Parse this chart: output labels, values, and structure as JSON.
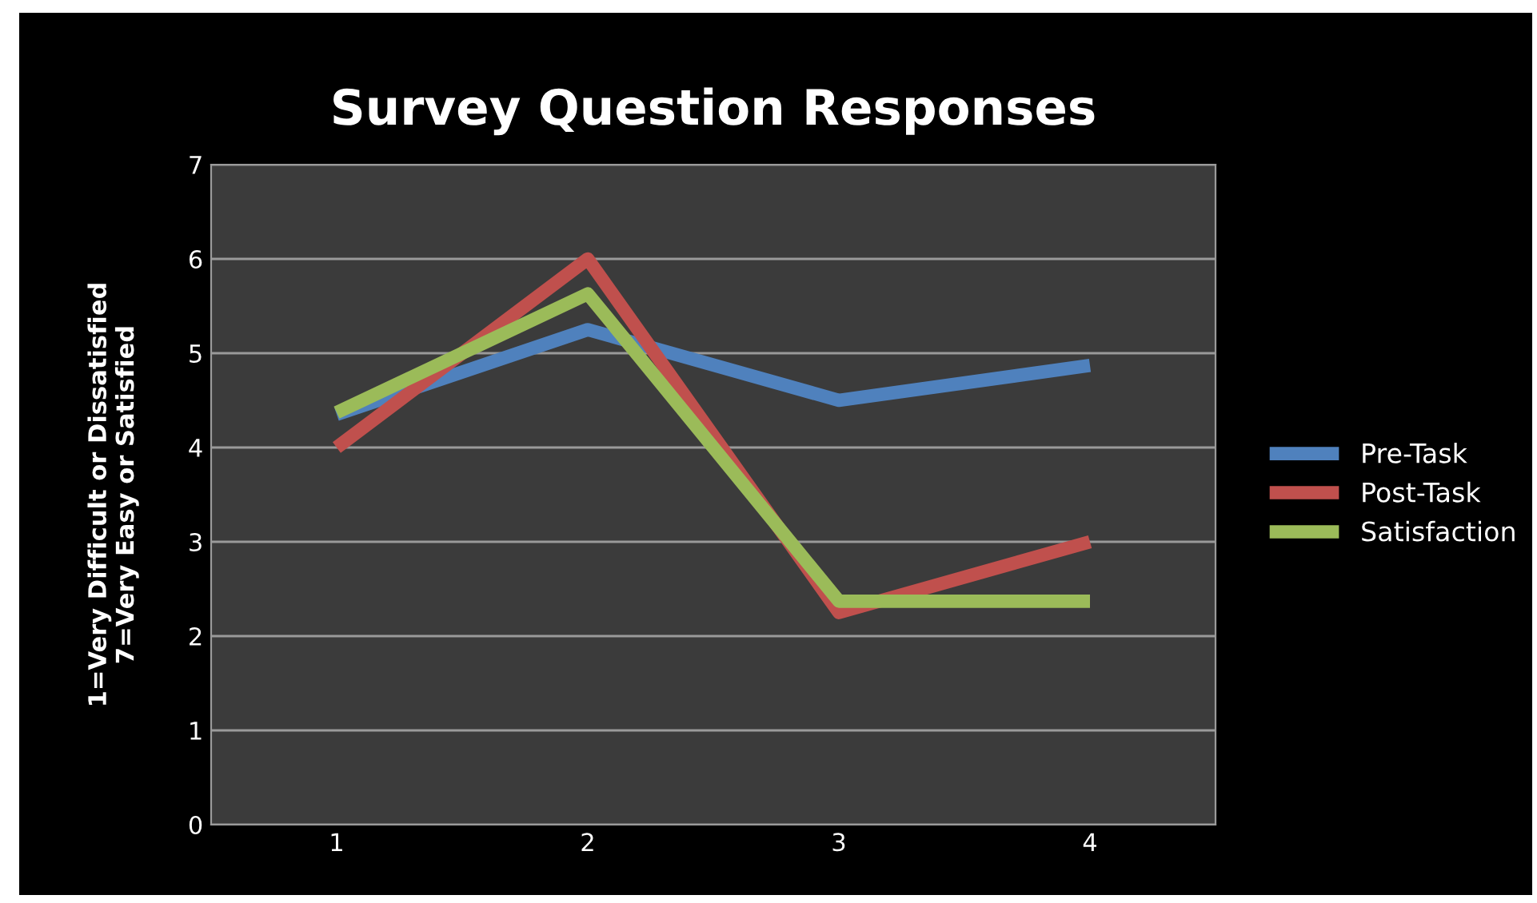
{
  "chart_data": {
    "type": "line",
    "title": "Survey Question Responses",
    "ylabel": "1=Very Difficult or Dissatisfied\n7=Very Easy or Satisfied",
    "categories": [
      "1",
      "2",
      "3",
      "4"
    ],
    "series": [
      {
        "name": "Pre-Task",
        "color": "#4f81bd",
        "values": [
          4.35,
          5.25,
          4.5,
          4.87
        ]
      },
      {
        "name": "Post-Task",
        "color": "#c0504d",
        "values": [
          4.0,
          6.0,
          2.25,
          3.0
        ]
      },
      {
        "name": "Satisfaction",
        "color": "#9bbb59",
        "values": [
          4.37,
          5.63,
          2.37,
          2.37
        ]
      }
    ],
    "ylim": [
      0,
      7
    ],
    "yticks": [
      0,
      1,
      2,
      3,
      4,
      5,
      6,
      7
    ],
    "grid": "y",
    "legend": "right",
    "marker": "none",
    "line_style": "solid"
  }
}
